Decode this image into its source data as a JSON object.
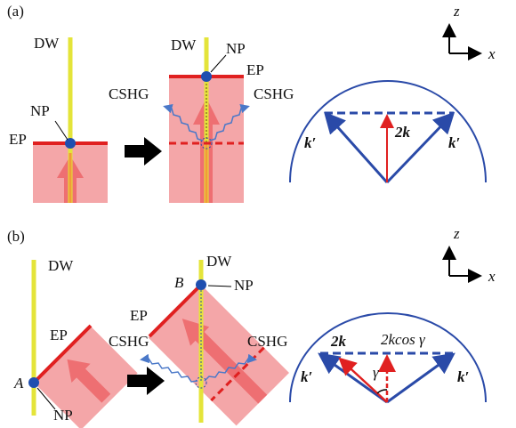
{
  "panel_a": {
    "label": "(a)",
    "left": {
      "dw": "DW",
      "np": "NP",
      "ep": "EP"
    },
    "middle": {
      "dw": "DW",
      "np": "NP",
      "ep": "EP",
      "cshg_left": "CSHG",
      "cshg_right": "CSHG"
    },
    "axes": {
      "z": "z",
      "x": "x"
    },
    "vectors": {
      "k_left": "k′",
      "center": "2k",
      "k_right": "k′"
    }
  },
  "panel_b": {
    "label": "(b)",
    "left": {
      "dw": "DW",
      "ep": "EP",
      "point": "A",
      "np": "NP"
    },
    "middle": {
      "point": "B",
      "dw": "DW",
      "np": "NP",
      "ep": "EP",
      "cshg_left": "CSHG",
      "cshg_right": "CSHG"
    },
    "axes": {
      "z": "z",
      "x": "x"
    },
    "vectors": {
      "k_left": "k′",
      "two_k": "2k",
      "projection": "2kcos γ",
      "angle": "γ",
      "k_right": "k′"
    }
  }
}
